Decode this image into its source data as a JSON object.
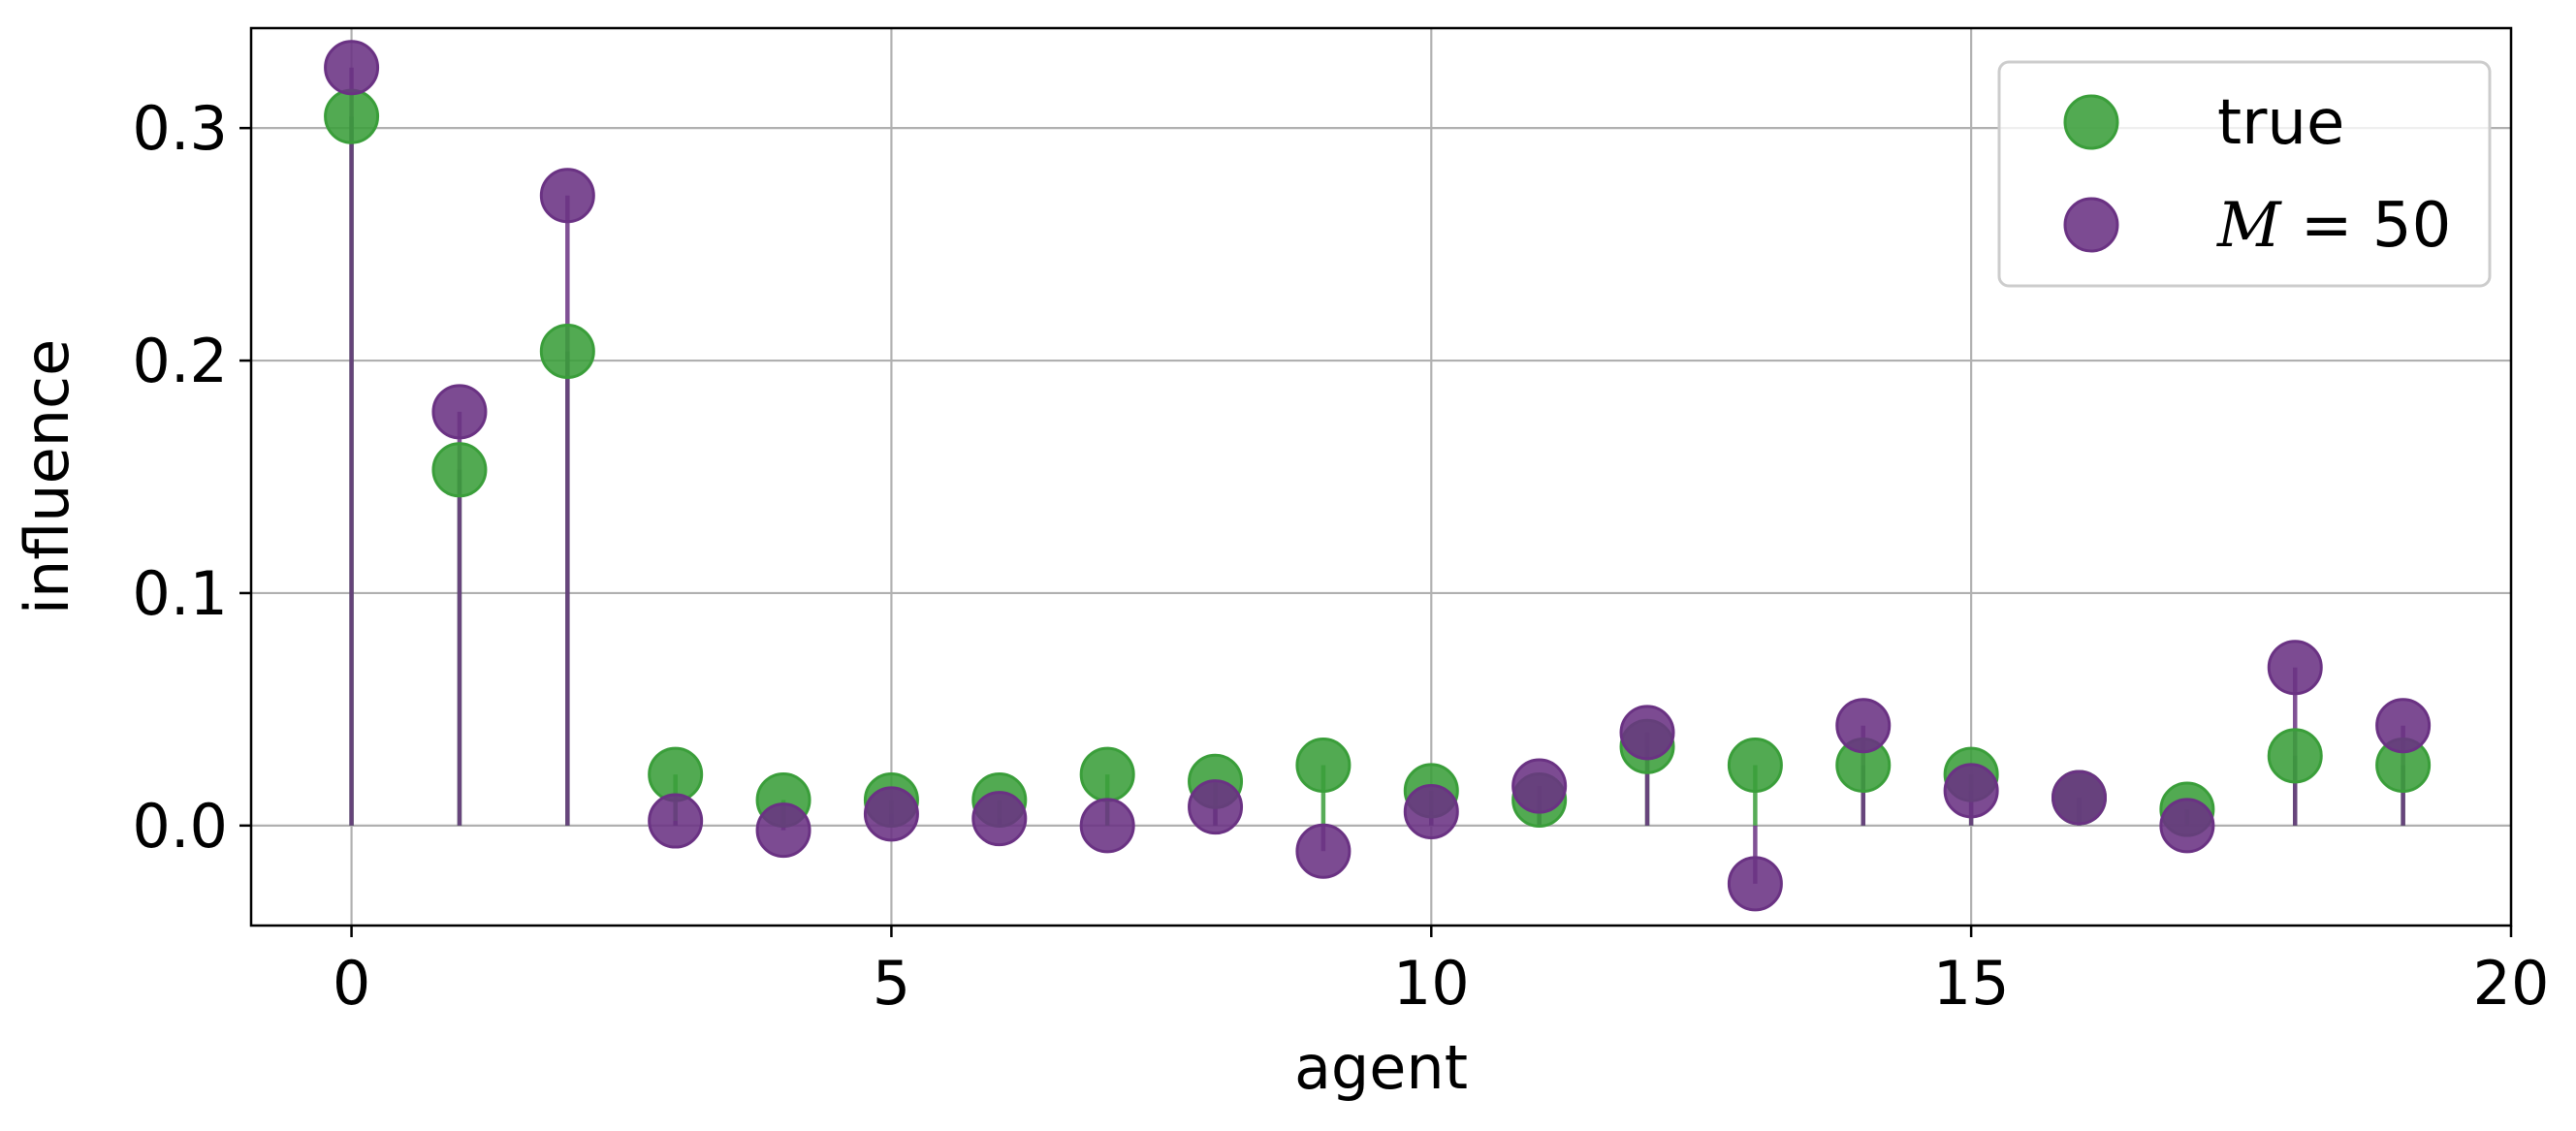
{
  "chart_data": {
    "type": "scatter",
    "style": "stem",
    "xlabel": "agent",
    "ylabel": "influence",
    "xlim": [
      -0.93,
      20
    ],
    "ylim": [
      -0.043,
      0.343
    ],
    "xticks": [
      0,
      5,
      10,
      15,
      20
    ],
    "yticks": [
      0.0,
      0.1,
      0.2,
      0.3
    ],
    "xtick_labels": [
      "0",
      "5",
      "10",
      "15",
      "20"
    ],
    "ytick_labels": [
      "0.0",
      "0.1",
      "0.2",
      "0.3"
    ],
    "grid": true,
    "legend_position": "top-right",
    "x": [
      0,
      1,
      2,
      3,
      4,
      5,
      6,
      7,
      8,
      9,
      10,
      11,
      12,
      13,
      14,
      15,
      16,
      17,
      18,
      19
    ],
    "series": [
      {
        "name": "true",
        "color": "#3a9e3a",
        "values": [
          0.305,
          0.153,
          0.204,
          0.022,
          0.011,
          0.011,
          0.011,
          0.022,
          0.019,
          0.026,
          0.015,
          0.011,
          0.034,
          0.026,
          0.026,
          0.022,
          0.012,
          0.007,
          0.03,
          0.026
        ]
      },
      {
        "name_prefix": "M",
        "name_suffix": " = 50",
        "color": "#6a3283",
        "values": [
          0.326,
          0.178,
          0.271,
          0.002,
          -0.002,
          0.005,
          0.003,
          0.0,
          0.008,
          -0.011,
          0.006,
          0.017,
          0.04,
          -0.025,
          0.043,
          0.015,
          0.012,
          0.0,
          0.068,
          0.043
        ]
      }
    ]
  }
}
